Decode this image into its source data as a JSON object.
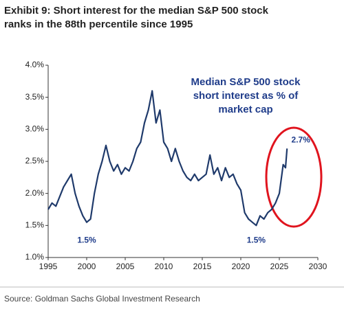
{
  "chart_data": {
    "type": "line",
    "title_lines": [
      "Exhibit 9: Short interest for the median S&P 500 stock",
      "ranks in the 88th percentile since 1995"
    ],
    "annotation_lines": [
      "Median S&P 500 stock",
      "short interest as % of",
      "market cap"
    ],
    "source": "Source: Goldman Sachs Global Investment Research",
    "x": [
      1995,
      1995.5,
      1996,
      1996.5,
      1997,
      1997.5,
      1998,
      1998.5,
      1999,
      1999.5,
      2000,
      2000.5,
      2001,
      2001.5,
      2002,
      2002.5,
      2003,
      2003.5,
      2004,
      2004.5,
      2005,
      2005.5,
      2006,
      2006.5,
      2007,
      2007.5,
      2008,
      2008.5,
      2009,
      2009.5,
      2010,
      2010.5,
      2011,
      2011.5,
      2012,
      2012.5,
      2013,
      2013.5,
      2014,
      2014.5,
      2015,
      2015.5,
      2016,
      2016.5,
      2017,
      2017.5,
      2018,
      2018.5,
      2019,
      2019.5,
      2020,
      2020.5,
      2021,
      2021.5,
      2022,
      2022.5,
      2023,
      2023.5,
      2024,
      2024.5,
      2025,
      2025.5,
      2025.8,
      2026
    ],
    "series": [
      {
        "color": "#1f3a6b",
        "values": [
          1.75,
          1.85,
          1.8,
          1.95,
          2.1,
          2.2,
          2.3,
          2.0,
          1.8,
          1.65,
          1.55,
          1.6,
          2.0,
          2.3,
          2.5,
          2.75,
          2.5,
          2.35,
          2.45,
          2.3,
          2.4,
          2.35,
          2.5,
          2.7,
          2.8,
          3.1,
          3.3,
          3.6,
          3.1,
          3.3,
          2.8,
          2.7,
          2.5,
          2.7,
          2.5,
          2.35,
          2.25,
          2.2,
          2.3,
          2.2,
          2.25,
          2.3,
          2.6,
          2.3,
          2.4,
          2.2,
          2.4,
          2.25,
          2.3,
          2.15,
          2.05,
          1.7,
          1.6,
          1.55,
          1.5,
          1.65,
          1.6,
          1.7,
          1.75,
          1.85,
          2.0,
          2.45,
          2.4,
          2.7
        ]
      }
    ],
    "point_labels": [
      {
        "x": 2000,
        "value": 1.5,
        "label": "1.5%"
      },
      {
        "x": 2022,
        "value": 1.5,
        "label": "1.5%"
      },
      {
        "x": 2026,
        "value": 2.7,
        "label": "2.7%"
      }
    ],
    "xlim": [
      1995,
      2030
    ],
    "xticks": [
      1995,
      2000,
      2005,
      2010,
      2015,
      2020,
      2025,
      2030
    ],
    "ylim": [
      1.0,
      4.0
    ],
    "yticks": [
      {
        "value": 1.0,
        "label": "1.0%"
      },
      {
        "value": 1.5,
        "label": "1.5%"
      },
      {
        "value": 2.0,
        "label": "2.0%"
      },
      {
        "value": 2.5,
        "label": "2.5%"
      },
      {
        "value": 3.0,
        "label": "3.0%"
      },
      {
        "value": 3.5,
        "label": "3.5%"
      },
      {
        "value": 4.0,
        "label": "4.0%"
      }
    ],
    "grid": false
  }
}
